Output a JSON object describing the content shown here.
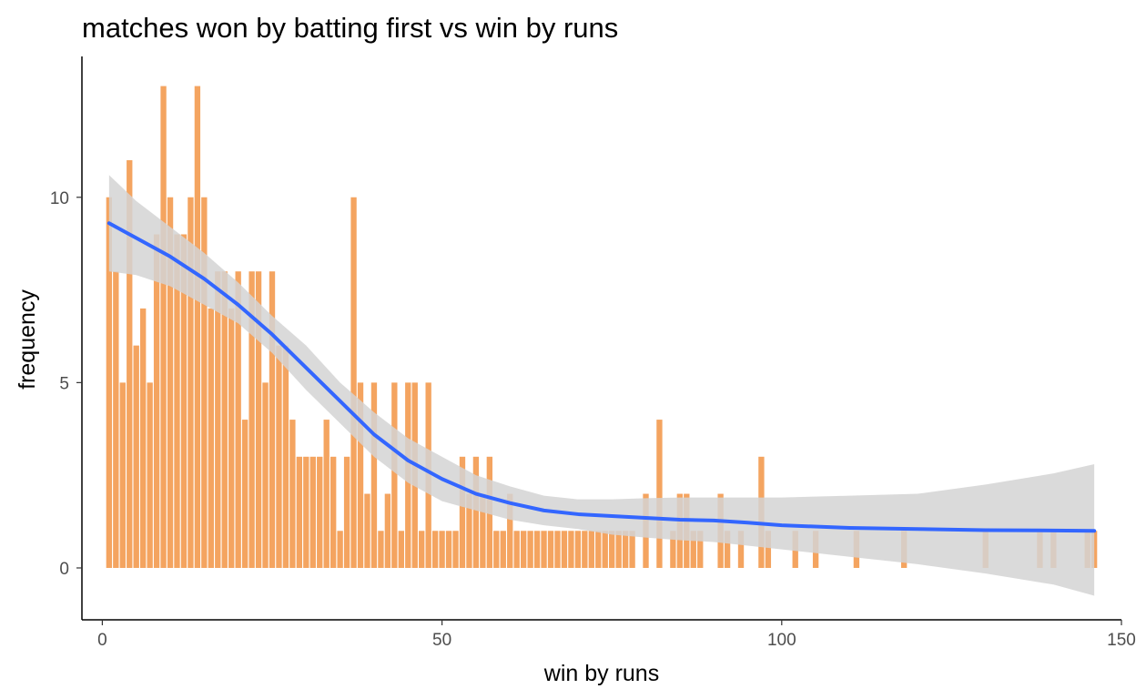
{
  "chart_data": {
    "type": "bar",
    "title": "matches won by batting first vs win by runs",
    "xlabel": "win by runs",
    "ylabel": "frequency",
    "xlim": [
      -3,
      150
    ],
    "ylim": [
      -1.4,
      13.8
    ],
    "xticks": [
      0,
      50,
      100,
      150
    ],
    "yticks": [
      0,
      5,
      10
    ],
    "grid": false,
    "legend": "none",
    "colors": {
      "bars": "#F4A460",
      "smooth_line": "#3366FF",
      "ci_band": "#D3D3D3",
      "axis": "#000000",
      "tick_label": "#4D4D4D"
    },
    "series": [
      {
        "type": "bar",
        "x": [
          1,
          2,
          3,
          4,
          5,
          6,
          7,
          8,
          9,
          10,
          11,
          12,
          13,
          14,
          15,
          16,
          17,
          18,
          19,
          20,
          21,
          22,
          23,
          24,
          25,
          26,
          27,
          28,
          29,
          30,
          31,
          32,
          33,
          34,
          35,
          36,
          37,
          38,
          39,
          40,
          41,
          42,
          43,
          44,
          45,
          46,
          47,
          48,
          49,
          50,
          51,
          52,
          53,
          54,
          55,
          56,
          57,
          58,
          59,
          60,
          61,
          62,
          63,
          64,
          65,
          66,
          67,
          68,
          69,
          70,
          71,
          72,
          73,
          74,
          75,
          76,
          77,
          78,
          80,
          82,
          84,
          85,
          86,
          87,
          88,
          91,
          92,
          94,
          97,
          98,
          102,
          105,
          111,
          118,
          130,
          138,
          140,
          145,
          146
        ],
        "values": [
          10,
          8,
          5,
          11,
          6,
          7,
          5,
          9,
          13,
          10,
          9,
          9,
          10,
          13,
          10,
          7,
          8,
          8,
          7,
          8,
          4,
          8,
          8,
          5,
          8,
          6,
          6,
          4,
          3,
          3,
          3,
          3,
          4,
          3,
          1,
          3,
          10,
          5,
          2,
          5,
          1,
          2,
          5,
          1,
          5,
          5,
          1,
          5,
          1,
          1,
          1,
          1,
          3,
          2,
          3,
          2,
          3,
          1,
          1,
          2,
          1,
          1,
          1,
          1,
          1,
          1,
          1,
          1,
          1,
          1,
          1,
          1,
          1,
          1,
          1,
          1,
          1,
          1,
          2,
          4,
          1,
          2,
          2,
          1,
          1,
          2,
          1,
          1,
          3,
          1,
          1,
          1,
          1,
          1,
          1,
          1,
          1,
          1,
          1
        ]
      },
      {
        "type": "smooth",
        "method": "loess",
        "x": [
          1,
          5,
          10,
          15,
          20,
          25,
          30,
          35,
          40,
          45,
          50,
          55,
          60,
          65,
          70,
          75,
          80,
          85,
          90,
          95,
          100,
          110,
          120,
          130,
          140,
          146
        ],
        "y": [
          9.3,
          8.9,
          8.4,
          7.8,
          7.1,
          6.3,
          5.4,
          4.5,
          3.6,
          2.9,
          2.4,
          2.0,
          1.75,
          1.55,
          1.45,
          1.4,
          1.35,
          1.3,
          1.28,
          1.22,
          1.15,
          1.08,
          1.05,
          1.02,
          1.01,
          1.0
        ],
        "ci_lower": [
          8.0,
          7.9,
          7.6,
          7.1,
          6.6,
          5.8,
          4.8,
          3.9,
          3.0,
          2.3,
          1.8,
          1.55,
          1.3,
          1.15,
          1.05,
          0.9,
          0.82,
          0.75,
          0.7,
          0.6,
          0.5,
          0.3,
          0.1,
          -0.15,
          -0.45,
          -0.75
        ],
        "ci_upper": [
          10.6,
          9.9,
          9.2,
          8.5,
          7.7,
          6.8,
          6.0,
          5.0,
          4.2,
          3.5,
          3.0,
          2.5,
          2.2,
          1.95,
          1.85,
          1.85,
          1.88,
          1.9,
          1.9,
          1.9,
          1.9,
          1.95,
          2.0,
          2.25,
          2.55,
          2.8
        ]
      }
    ]
  }
}
